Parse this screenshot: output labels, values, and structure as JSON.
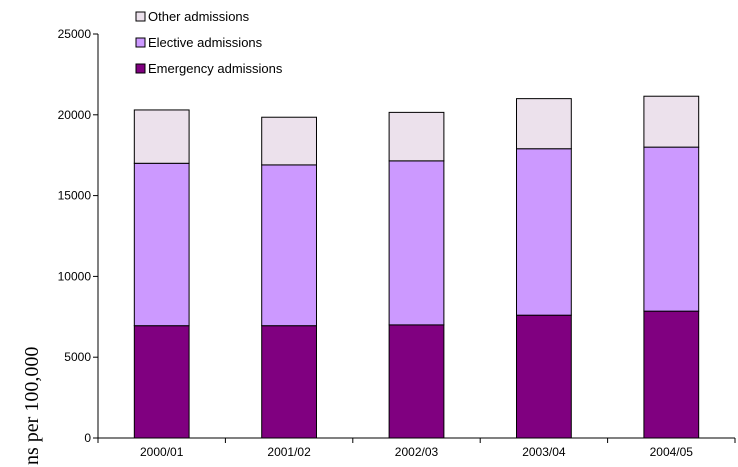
{
  "chart_data": {
    "type": "bar",
    "stacked": true,
    "categories": [
      "2000/01",
      "2001/02",
      "2002/03",
      "2003/04",
      "2004/05"
    ],
    "series": [
      {
        "name": "Emergency admissions",
        "color": "#800080",
        "values": [
          6950,
          6950,
          7000,
          7600,
          7850
        ]
      },
      {
        "name": "Elective admissions",
        "color": "#cc99ff",
        "values": [
          10050,
          9950,
          10150,
          10300,
          10150
        ]
      },
      {
        "name": "Other admissions",
        "color": "#ece1ec",
        "values": [
          3300,
          2950,
          3000,
          3100,
          3150
        ]
      }
    ],
    "legend_order": [
      "Other admissions",
      "Elective admissions",
      "Emergency admissions"
    ],
    "legend_position": "top-left",
    "ylabel": "ns per 100,000",
    "xlabel": "",
    "ylim": [
      0,
      25000
    ],
    "yticks": [
      0,
      5000,
      10000,
      15000,
      20000,
      25000
    ],
    "ytick_labels": [
      "0",
      "5000",
      "10000",
      "15000",
      "20000",
      "25000"
    ],
    "grid": false
  }
}
